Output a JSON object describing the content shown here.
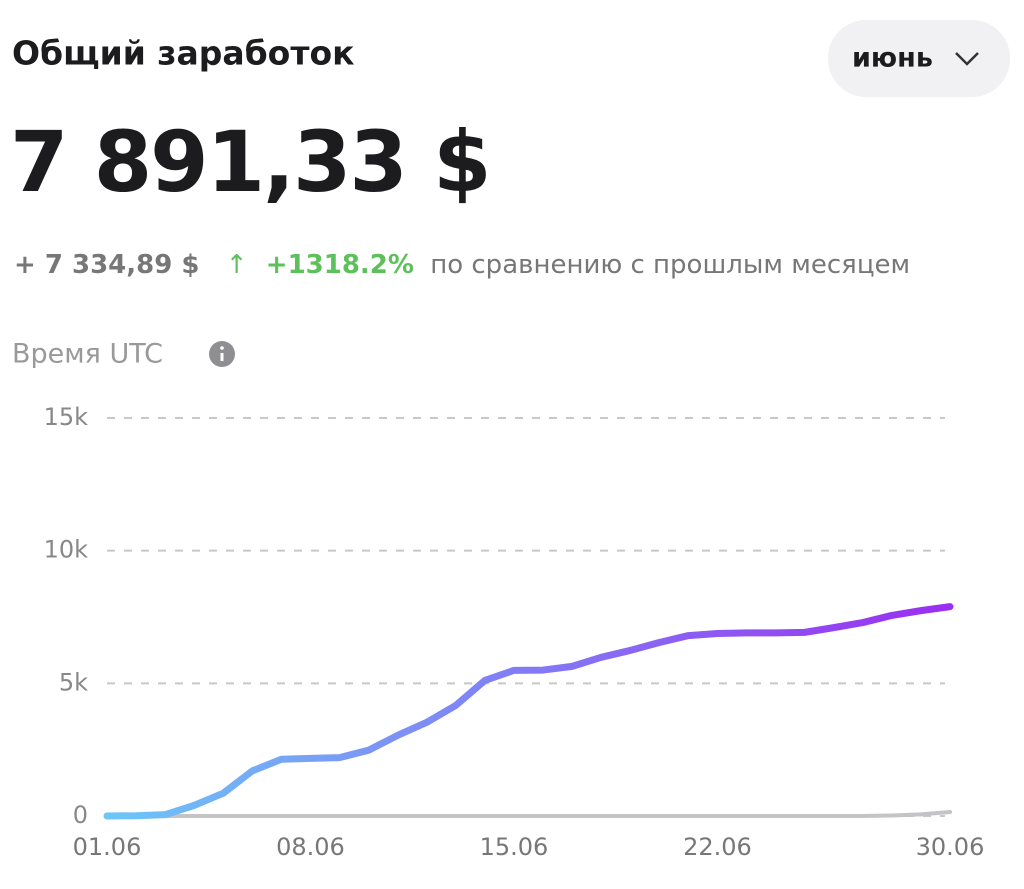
{
  "title": "Общий заработок",
  "month": "июнь",
  "total": "7 891,33 $",
  "change": "+ 7 334,89 $",
  "arrow": "↑",
  "percent": "+1318.2%",
  "comparison": "по сравнению с прошлым месяцем",
  "time_label": "Время UTC",
  "chart_data": {
    "type": "line",
    "categories": [
      "01.06",
      null,
      null,
      null,
      null,
      null,
      null,
      "08.06",
      null,
      null,
      null,
      null,
      null,
      null,
      "15.06",
      null,
      null,
      null,
      null,
      null,
      null,
      "22.06",
      null,
      null,
      null,
      null,
      null,
      null,
      null,
      "30.06"
    ],
    "series": [
      {
        "color": "#c4c4c8",
        "values": [
          0,
          0,
          0,
          0,
          0,
          0,
          0,
          0,
          0,
          0,
          0,
          0,
          0,
          0,
          0,
          0,
          0,
          0,
          0,
          0,
          0,
          0,
          0,
          0,
          0,
          0,
          0,
          20,
          60,
          150
        ]
      },
      {
        "color": "#6cc6f7",
        "color_end": "#9a2ef2",
        "values": [
          0,
          10,
          50,
          400,
          860,
          1700,
          2140,
          2170,
          2200,
          2480,
          3040,
          3530,
          4170,
          5110,
          5490,
          5500,
          5640,
          5980,
          6240,
          6540,
          6800,
          6880,
          6900,
          6900,
          6920,
          7100,
          7290,
          7560,
          7740,
          7891.33
        ]
      }
    ],
    "ylim": [
      0,
      15000
    ],
    "yticks": [
      0,
      {
        "value": 5000,
        "label": "5k"
      },
      {
        "value": 10000,
        "label": "10k"
      },
      {
        "value": 15000,
        "label": "15k"
      }
    ],
    "grid": true
  }
}
